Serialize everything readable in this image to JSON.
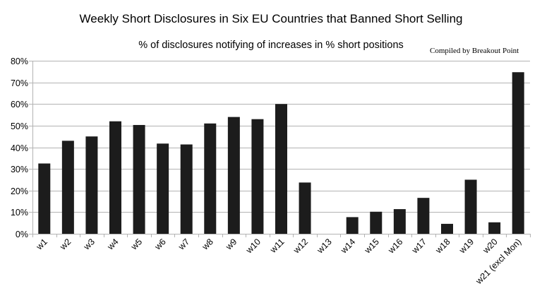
{
  "chart_data": {
    "type": "bar",
    "title": "Weekly Short Disclosures in Six EU Countries that Banned Short Selling",
    "subtitle": "% of disclosures notifying of increases in % short positions",
    "annotation": "Compiled by Breakout Point",
    "categories": [
      "w1",
      "w2",
      "w3",
      "w4",
      "w5",
      "w6",
      "w7",
      "w8",
      "w9",
      "w10",
      "w11",
      "w12",
      "w13",
      "w14",
      "w15",
      "w16",
      "w17",
      "w18",
      "w19",
      "w20",
      "w21 (excl Mon)"
    ],
    "values": [
      32.5,
      43,
      45,
      52,
      50.3,
      41.7,
      41.3,
      51,
      54,
      53,
      60,
      23.7,
      0,
      7.7,
      10.2,
      11.4,
      16.6,
      4.6,
      25,
      5.3,
      74.7
    ],
    "ylim": [
      0,
      80
    ],
    "yticks": [
      0,
      10,
      20,
      30,
      40,
      50,
      60,
      70,
      80
    ],
    "ytick_labels": [
      "0%",
      "10%",
      "20%",
      "30%",
      "40%",
      "50%",
      "60%",
      "70%",
      "80%"
    ],
    "grid": "horizontal",
    "bar_color": "#1c1c1c"
  }
}
